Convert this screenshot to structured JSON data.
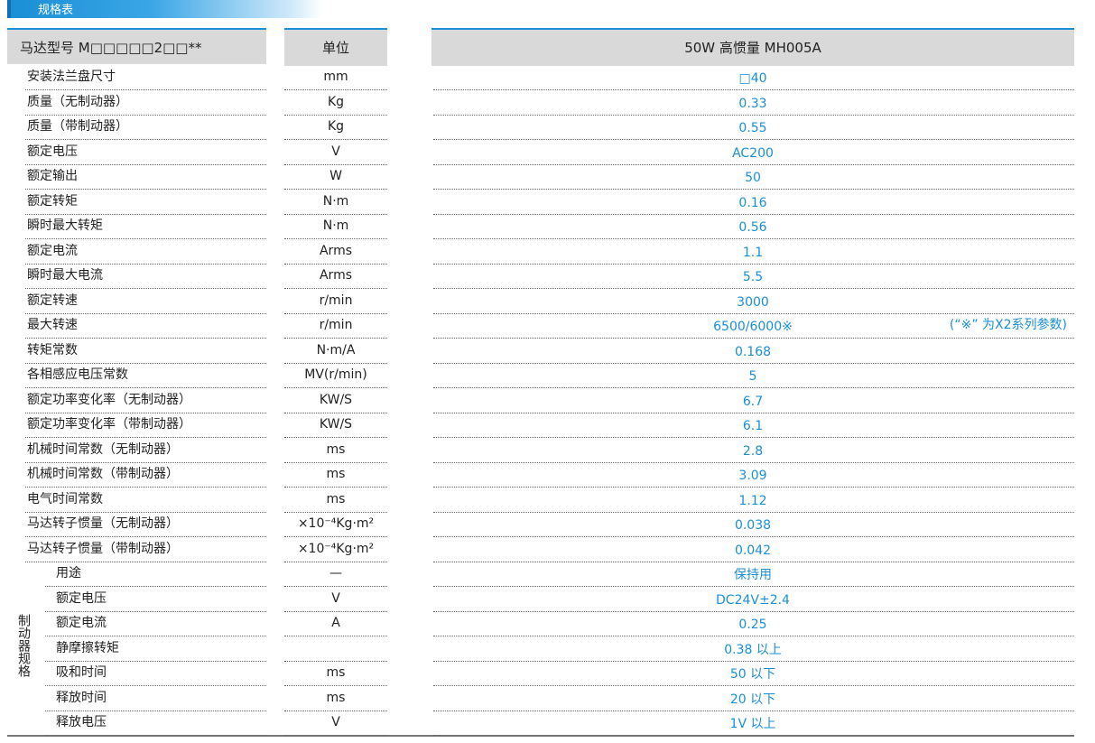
{
  "header": {
    "title": "规格表"
  },
  "table": {
    "columns": [
      "马达型号 M□□□□□2□□**",
      "单位",
      "50W 高惯量 MH005A"
    ],
    "rows": [
      [
        "安装法兰盘尺寸",
        "mm",
        "□40"
      ],
      [
        "质量（无制动器）",
        "Kg",
        "0.33"
      ],
      [
        "质量（带制动器）",
        "Kg",
        "0.55"
      ],
      [
        "额定电压",
        "V",
        "AC200"
      ],
      [
        "额定输出",
        "W",
        "50"
      ],
      [
        "额定转矩",
        "N·m",
        "0.16"
      ],
      [
        "瞬时最大转矩",
        "N·m",
        "0.56"
      ],
      [
        "额定电流",
        "Arms",
        "1.1"
      ],
      [
        "瞬时最大电流",
        "Arms",
        "5.5"
      ],
      [
        "额定转速",
        "r/min",
        "3000"
      ],
      [
        "最大转速",
        "r/min",
        "6500/6000※"
      ],
      [
        "转矩常数",
        "N·m/A",
        "0.168"
      ],
      [
        "各相感应电压常数",
        "MV(r/min)",
        "5"
      ],
      [
        "额定功率变化率（无制动器）",
        "KW/S",
        "6.7"
      ],
      [
        "额定功率变化率（带制动器）",
        "KW/S",
        "6.1"
      ],
      [
        "机械时间常数（无制动器）",
        "ms",
        "2.8"
      ],
      [
        "机械时间常数（带制动器）",
        "ms",
        "3.09"
      ],
      [
        "电气时间常数",
        "ms",
        "1.12"
      ],
      [
        "马达转子惯量（无制动器）",
        "×10⁻⁴Kg·m²",
        "0.038"
      ],
      [
        "马达转子惯量（带制动器）",
        "×10⁻⁴Kg·m²",
        "0.042"
      ]
    ],
    "note": "(“※” 为X2系列参数)",
    "brake_group": {
      "label": "制动器规格",
      "rows": [
        [
          "用途",
          "—",
          "保持用"
        ],
        [
          "额定电压",
          "V",
          "DC24V±2.4"
        ],
        [
          "额定电流",
          "A",
          "0.25"
        ],
        [
          "静摩擦转矩",
          null,
          "0.38 以上"
        ],
        [
          "吸和时间",
          "ms",
          "50 以下"
        ],
        [
          "释放时间",
          "ms",
          "20 以下"
        ],
        [
          "释放电压",
          "V",
          "1V 以上"
        ]
      ]
    }
  }
}
